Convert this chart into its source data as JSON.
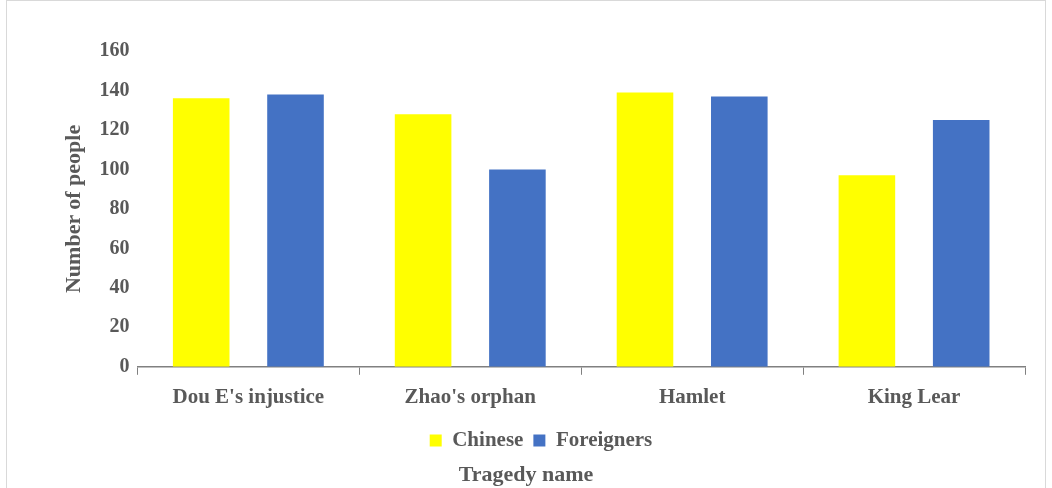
{
  "chart_data": {
    "type": "bar",
    "xlabel": "Tragedy name",
    "ylabel": "Number of people",
    "categories": [
      "Dou E's injustice",
      "Zhao's orphan",
      "Hamlet",
      "King Lear"
    ],
    "series": [
      {
        "name": "Chinese",
        "color": "#ffff00",
        "values": [
          136,
          128,
          139,
          97
        ]
      },
      {
        "name": "Foreigners",
        "color": "#4472c4",
        "values": [
          138,
          100,
          137,
          125
        ]
      }
    ],
    "ylim": [
      0,
      160
    ],
    "yticks": [
      0,
      20,
      40,
      60,
      80,
      100,
      120,
      140,
      160
    ],
    "grid": false,
    "legend": "bottom"
  }
}
